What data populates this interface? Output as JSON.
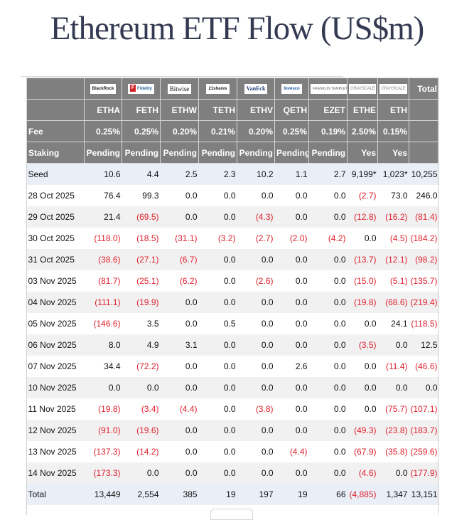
{
  "page": {
    "title": "Ethereum ETF Flow (US$m)"
  },
  "table": {
    "issuers": [
      {
        "name": "BlackRock",
        "logo": "BlackRock"
      },
      {
        "name": "Fidelity",
        "logo": "Fidelity"
      },
      {
        "name": "Bitwise",
        "logo": "Bitwise"
      },
      {
        "name": "21shares",
        "logo": "21shares"
      },
      {
        "name": "VanEck",
        "logo": "VanEck"
      },
      {
        "name": "Invesco",
        "logo": "Invesco"
      },
      {
        "name": "Franklin Templeton",
        "logo": "FRANKLIN TEMPLETON"
      },
      {
        "name": "Grayscale",
        "logo": "GRAYSCALE"
      },
      {
        "name": "Grayscale",
        "logo": "GRAYSCALE"
      }
    ],
    "total_header": "Total",
    "tickers": [
      "ETHA",
      "FETH",
      "ETHW",
      "TETH",
      "ETHV",
      "QETH",
      "EZET",
      "ETHE",
      "ETH"
    ],
    "fee_label": "Fee",
    "fees": [
      "0.25%",
      "0.25%",
      "0.20%",
      "0.21%",
      "0.20%",
      "0.25%",
      "0.19%",
      "2.50%",
      "0.15%"
    ],
    "staking_label": "Staking",
    "staking": [
      "Pending",
      "Pending",
      "Pending",
      "Pending",
      "Pending",
      "Pending",
      "Pending",
      "Yes",
      "Yes"
    ],
    "rows": [
      {
        "label": "Seed",
        "values": [
          "10.6",
          "4.4",
          "2.5",
          "2.3",
          "10.2",
          "1.1",
          "2.7",
          "9,199*",
          "1,023*",
          "10,255"
        ]
      },
      {
        "label": "28 Oct 2025",
        "values": [
          "76.4",
          "99.3",
          "0.0",
          "0.0",
          "0.0",
          "0.0",
          "0.0",
          "(2.7)",
          "73.0",
          "246.0"
        ]
      },
      {
        "label": "29 Oct 2025",
        "values": [
          "21.4",
          "(69.5)",
          "0.0",
          "0.0",
          "(4.3)",
          "0.0",
          "0.0",
          "(12.8)",
          "(16.2)",
          "(81.4)"
        ]
      },
      {
        "label": "30 Oct 2025",
        "values": [
          "(118.0)",
          "(18.5)",
          "(31.1)",
          "(3.2)",
          "(2.7)",
          "(2.0)",
          "(4.2)",
          "0.0",
          "(4.5)",
          "(184.2)"
        ]
      },
      {
        "label": "31 Oct 2025",
        "values": [
          "(38.6)",
          "(27.1)",
          "(6.7)",
          "0.0",
          "0.0",
          "0.0",
          "0.0",
          "(13.7)",
          "(12.1)",
          "(98.2)"
        ]
      },
      {
        "label": "03 Nov 2025",
        "values": [
          "(81.7)",
          "(25.1)",
          "(6.2)",
          "0.0",
          "(2.6)",
          "0.0",
          "0.0",
          "(15.0)",
          "(5.1)",
          "(135.7)"
        ]
      },
      {
        "label": "04 Nov 2025",
        "values": [
          "(111.1)",
          "(19.9)",
          "0.0",
          "0.0",
          "0.0",
          "0.0",
          "0.0",
          "(19.8)",
          "(68.6)",
          "(219.4)"
        ]
      },
      {
        "label": "05 Nov 2025",
        "values": [
          "(146.6)",
          "3.5",
          "0.0",
          "0.5",
          "0.0",
          "0.0",
          "0.0",
          "0.0",
          "24.1",
          "(118.5)"
        ]
      },
      {
        "label": "06 Nov 2025",
        "values": [
          "8.0",
          "4.9",
          "3.1",
          "0.0",
          "0.0",
          "0.0",
          "0.0",
          "(3.5)",
          "0.0",
          "12.5"
        ]
      },
      {
        "label": "07 Nov 2025",
        "values": [
          "34.4",
          "(72.2)",
          "0.0",
          "0.0",
          "0.0",
          "2.6",
          "0.0",
          "0.0",
          "(11.4)",
          "(46.6)"
        ]
      },
      {
        "label": "10 Nov 2025",
        "values": [
          "0.0",
          "0.0",
          "0.0",
          "0.0",
          "0.0",
          "0.0",
          "0.0",
          "0.0",
          "0.0",
          "0.0"
        ]
      },
      {
        "label": "11 Nov 2025",
        "values": [
          "(19.8)",
          "(3.4)",
          "(4.4)",
          "0.0",
          "(3.8)",
          "0.0",
          "0.0",
          "0.0",
          "(75.7)",
          "(107.1)"
        ]
      },
      {
        "label": "12 Nov 2025",
        "values": [
          "(91.0)",
          "(19.6)",
          "0.0",
          "0.0",
          "0.0",
          "0.0",
          "0.0",
          "(49.3)",
          "(23.8)",
          "(183.7)"
        ]
      },
      {
        "label": "13 Nov 2025",
        "values": [
          "(137.3)",
          "(14.2)",
          "0.0",
          "0.0",
          "0.0",
          "(4.4)",
          "0.0",
          "(67.9)",
          "(35.8)",
          "(259.6)"
        ]
      },
      {
        "label": "14 Nov 2025",
        "values": [
          "(173.3)",
          "0.0",
          "0.0",
          "0.0",
          "0.0",
          "0.0",
          "0.0",
          "(4.6)",
          "0.0",
          "(177.9)"
        ]
      },
      {
        "label": "Total",
        "values": [
          "13,449",
          "2,554",
          "385",
          "19",
          "197",
          "19",
          "66",
          "(4,885)",
          "1,347",
          "13,151"
        ]
      }
    ]
  },
  "colors": {
    "header_bg": "#7f7f7f",
    "negative": "#e0202e",
    "highlight_row": "#e9eef7",
    "title": "#343a52"
  }
}
